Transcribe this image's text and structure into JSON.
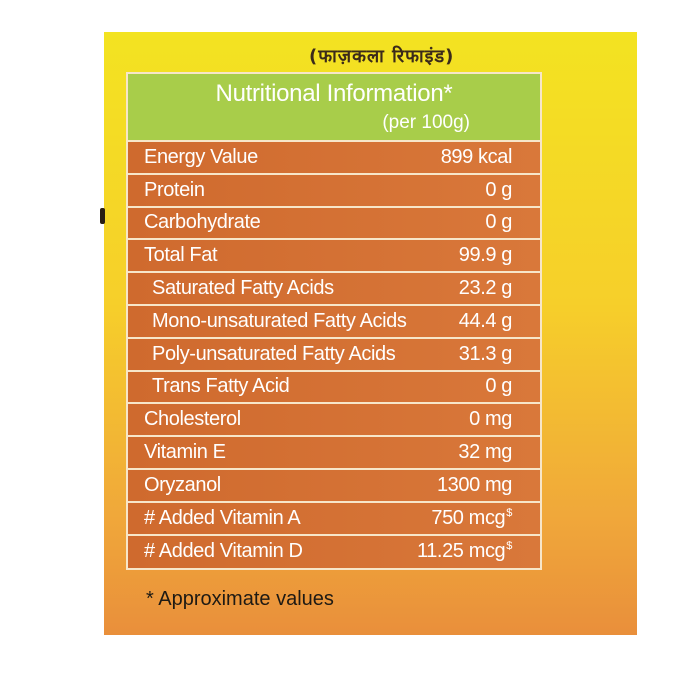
{
  "header_script": "(फाज़कला रिफाइंड)",
  "table": {
    "title": "Nutritional Information*",
    "subtitle": "(per 100g)",
    "rows": [
      {
        "label": "Energy Value",
        "value": "899 kcal",
        "sup": ""
      },
      {
        "label": "Protein",
        "value": "0 g",
        "sup": ""
      },
      {
        "label": "Carbohydrate",
        "value": "0 g",
        "sup": ""
      },
      {
        "label": "Total Fat",
        "value": "99.9 g",
        "sup": ""
      },
      {
        "label": "Saturated Fatty Acids",
        "value": "23.2 g",
        "sup": ""
      },
      {
        "label": "Mono-unsaturated Fatty Acids",
        "value": "44.4 g",
        "sup": ""
      },
      {
        "label": "Poly-unsaturated Fatty Acids",
        "value": "31.3 g",
        "sup": ""
      },
      {
        "label": "Trans Fatty Acid",
        "value": "0 g",
        "sup": ""
      },
      {
        "label": "Cholesterol",
        "value": "0 mg",
        "sup": ""
      },
      {
        "label": "Vitamin E",
        "value": "32 mg",
        "sup": ""
      },
      {
        "label": "Oryzanol",
        "value": "1300 mg",
        "sup": ""
      },
      {
        "label": "# Added Vitamin A",
        "value": "750 mcg",
        "sup": "$"
      },
      {
        "label": "# Added Vitamin D",
        "value": "11.25 mcg",
        "sup": "$"
      }
    ]
  },
  "footnote": "* Approximate values",
  "colors": {
    "header_green": "#a8cd4a",
    "row_orange": "#d9783a",
    "border_cream": "#f7e6c9",
    "pack_yellow": "#f3e321"
  }
}
